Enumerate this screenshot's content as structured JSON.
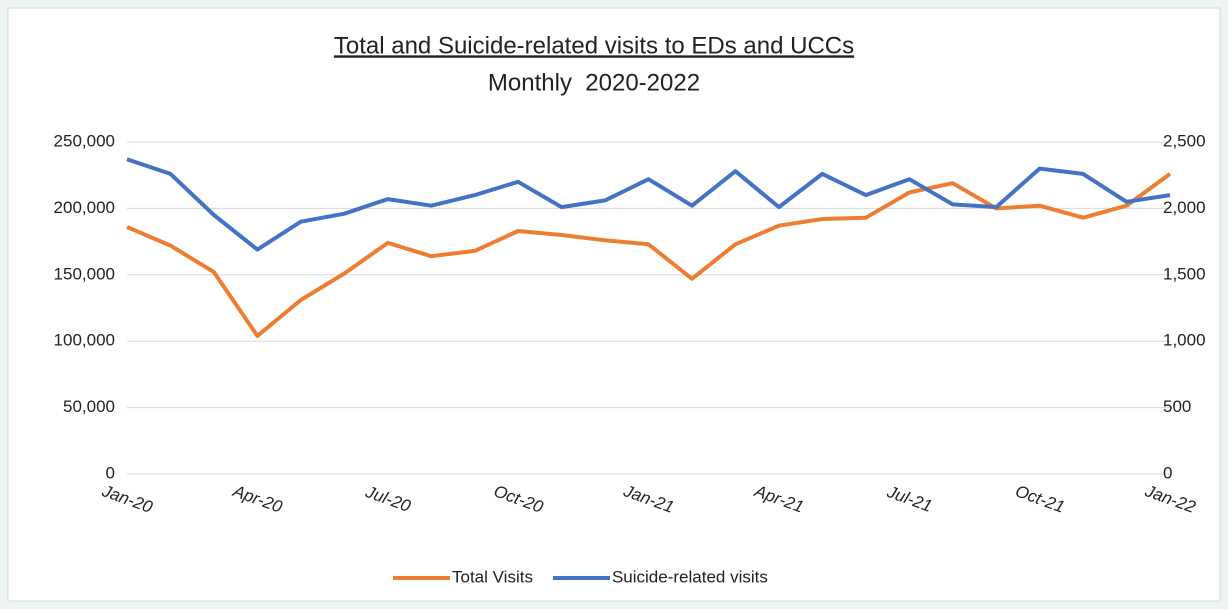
{
  "chart_data": {
    "type": "line",
    "title": "Total and Suicide-related visits to EDs and UCCs",
    "subtitle": "Monthly  2020-2022",
    "categories": [
      "Jan-20",
      null,
      null,
      "Apr-20",
      null,
      null,
      "Jul-20",
      null,
      null,
      "Oct-20",
      null,
      null,
      "Jan-21",
      null,
      null,
      "Apr-21",
      null,
      null,
      "Jul-21",
      null,
      null,
      "Oct-21",
      null,
      null,
      "Jan-22"
    ],
    "series": [
      {
        "name": "Total Visits",
        "color": "#ed7d31",
        "values": [
          186000,
          172000,
          152000,
          104000,
          131000,
          151000,
          174000,
          164000,
          168000,
          183000,
          180000,
          176000,
          173000,
          147000,
          173000,
          187000,
          192000,
          193000,
          212000,
          219000,
          200000,
          202000,
          193000,
          202000,
          226000
        ]
      },
      {
        "name": "Suicide-related visits",
        "color": "#4472c4",
        "axis": "y2",
        "values": [
          2370,
          2260,
          1950,
          1690,
          1900,
          1960,
          2070,
          2020,
          2100,
          2200,
          2010,
          2060,
          2220,
          2020,
          2280,
          2010,
          2260,
          2100,
          2220,
          2030,
          2010,
          2300,
          2260,
          2050,
          2100
        ]
      }
    ],
    "ylim": [
      0,
      250000
    ],
    "yticks": [
      0,
      {
        "value": 50000,
        "label": "50,000"
      },
      {
        "value": 100000,
        "label": "100,000"
      },
      {
        "value": 150000,
        "label": "150,000"
      },
      {
        "value": 200000,
        "label": "200,000"
      },
      {
        "value": 250000,
        "label": "250,000"
      }
    ],
    "y2lim": [
      0,
      2500
    ],
    "y2ticks": [
      0,
      500,
      {
        "value": 1000,
        "label": "1,000"
      },
      {
        "value": 1500,
        "label": "1,500"
      },
      {
        "value": 2000,
        "label": "2,000"
      },
      {
        "value": 2500,
        "label": "2,500"
      }
    ],
    "grid": true,
    "legend": "bottom"
  }
}
